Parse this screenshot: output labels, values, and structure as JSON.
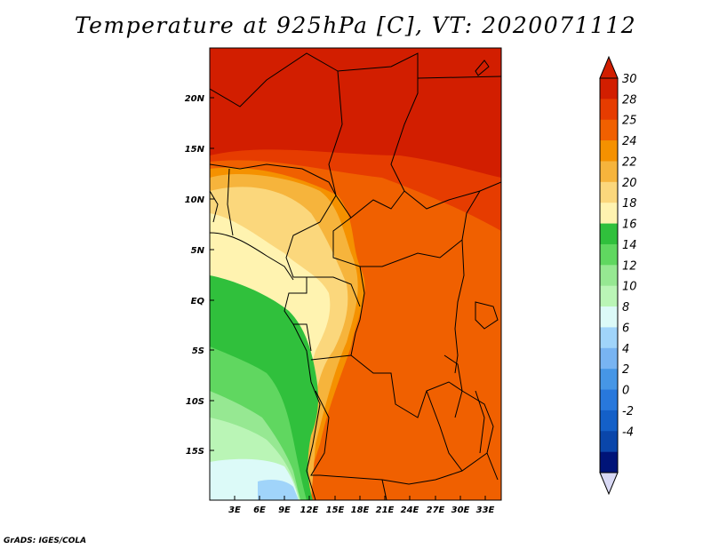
{
  "title": "Temperature at 925hPa [C], VT: 2020071112",
  "credit": "GrADS: IGES/COLA",
  "lat_labels": [
    "20N",
    "15N",
    "10N",
    "5N",
    "EQ",
    "5S",
    "10S",
    "15S"
  ],
  "lon_labels": [
    "3E",
    "6E",
    "9E",
    "12E",
    "15E",
    "18E",
    "21E",
    "24E",
    "27E",
    "30E",
    "33E"
  ],
  "colorbar": {
    "labels": [
      "30",
      "28",
      "25",
      "24",
      "22",
      "20",
      "18",
      "16",
      "14",
      "12",
      "10",
      "8",
      "6",
      "4",
      "2",
      "0",
      "-2",
      "-4"
    ],
    "colors": [
      "#d21e00",
      "#e63c00",
      "#f06000",
      "#f59100",
      "#f6b43c",
      "#fbd77c",
      "#fff3b0",
      "#30c03c",
      "#60d760",
      "#96e892",
      "#baf5b6",
      "#dcfaf8",
      "#a0d4fa",
      "#78b4f2",
      "#4696e6",
      "#2878dc",
      "#1460c8",
      "#0a46aa",
      "#001478"
    ],
    "top_arrow_color": "#d21e00",
    "bottom_arrow_color": "#d8d8f4"
  },
  "field_colors": {
    "hot": "#d21e00",
    "warm": "#e63c00",
    "orange": "#f06000",
    "amber": "#f59100",
    "tan": "#f6b43c",
    "pale": "#fbd77c",
    "cream": "#fff3b0",
    "green": "#30c03c",
    "lightgreen": "#60d760",
    "mint": "#96e892",
    "palemint": "#baf5b6",
    "ice": "#dcfaf8",
    "skyblue": "#a0d4fa"
  }
}
